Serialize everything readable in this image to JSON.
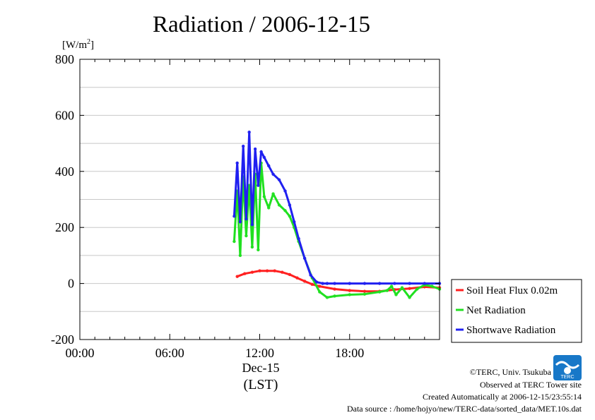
{
  "chart_data": {
    "type": "line",
    "title": "Radiation / 2006-12-15",
    "ylabel": "[W/m²]",
    "ylabel_parts": {
      "main": "[W/m",
      "sup": "2",
      "end": "]"
    },
    "xlabel_date": "Dec-15",
    "xlabel_tz": "(LST)",
    "xlim": [
      0,
      24
    ],
    "ylim": [
      -200,
      800
    ],
    "xticks": [
      {
        "value": 0,
        "label": "00:00"
      },
      {
        "value": 6,
        "label": "06:00"
      },
      {
        "value": 12,
        "label": "12:00"
      },
      {
        "value": 18,
        "label": "18:00"
      }
    ],
    "yticks": [
      {
        "value": 800,
        "label": "800"
      },
      {
        "value": 600,
        "label": "600"
      },
      {
        "value": 400,
        "label": "400"
      },
      {
        "value": 200,
        "label": "200"
      },
      {
        "value": 0,
        "label": "0"
      },
      {
        "value": -200,
        "label": "-200"
      }
    ],
    "grid": true,
    "legend_position": "right",
    "series": [
      {
        "name": "Soil Heat Flux 0.02m",
        "color": "#ff2020",
        "x": [
          10.5,
          11.0,
          11.5,
          12.0,
          12.5,
          13.0,
          13.5,
          14.0,
          14.5,
          15.0,
          15.5,
          16.0,
          17.0,
          18.0,
          19.0,
          20.0,
          21.0,
          22.0,
          23.0,
          24.0
        ],
        "y": [
          25,
          35,
          40,
          45,
          45,
          45,
          40,
          32,
          20,
          8,
          -3,
          -10,
          -20,
          -25,
          -28,
          -28,
          -22,
          -18,
          -12,
          -15
        ]
      },
      {
        "name": "Net Radiation",
        "color": "#20e020",
        "x": [
          10.3,
          10.5,
          10.7,
          10.9,
          11.1,
          11.3,
          11.5,
          11.7,
          11.9,
          12.1,
          12.3,
          12.6,
          12.9,
          13.3,
          13.7,
          14.0,
          14.3,
          14.6,
          15.0,
          15.5,
          16.0,
          16.5,
          17.0,
          18.0,
          19.0,
          20.0,
          20.5,
          20.8,
          21.1,
          21.5,
          22.0,
          22.5,
          23.0,
          23.5,
          24.0
        ],
        "y": [
          150,
          330,
          100,
          380,
          170,
          350,
          130,
          390,
          120,
          430,
          310,
          270,
          320,
          280,
          260,
          240,
          200,
          150,
          90,
          20,
          -30,
          -50,
          -45,
          -40,
          -38,
          -30,
          -25,
          -10,
          -40,
          -15,
          -50,
          -20,
          -5,
          -10,
          -20
        ]
      },
      {
        "name": "Shortwave Radiation",
        "color": "#2020f0",
        "x": [
          10.3,
          10.5,
          10.7,
          10.9,
          11.1,
          11.3,
          11.5,
          11.7,
          11.9,
          12.1,
          12.3,
          12.6,
          12.9,
          13.3,
          13.7,
          14.0,
          14.3,
          14.6,
          15.0,
          15.4,
          15.8,
          16.2,
          16.5,
          17.0,
          18.0,
          19.0,
          20.0,
          21.0,
          22.0,
          23.0,
          24.0
        ],
        "y": [
          240,
          430,
          220,
          490,
          230,
          540,
          210,
          480,
          350,
          470,
          450,
          420,
          390,
          370,
          330,
          280,
          220,
          160,
          90,
          30,
          5,
          0,
          0,
          0,
          0,
          0,
          0,
          0,
          0,
          0,
          0
        ]
      }
    ]
  },
  "footer": {
    "copyright": "©TERC, Univ. Tsukuba",
    "observed": "Observed at TERC Tower site",
    "created": "Created Automatically at 2006-12-15/23:55:14",
    "source": "Data source : /home/hojyo/new/TERC-data/sorted_data/MET.10s.dat",
    "logo_text": "TERC"
  }
}
